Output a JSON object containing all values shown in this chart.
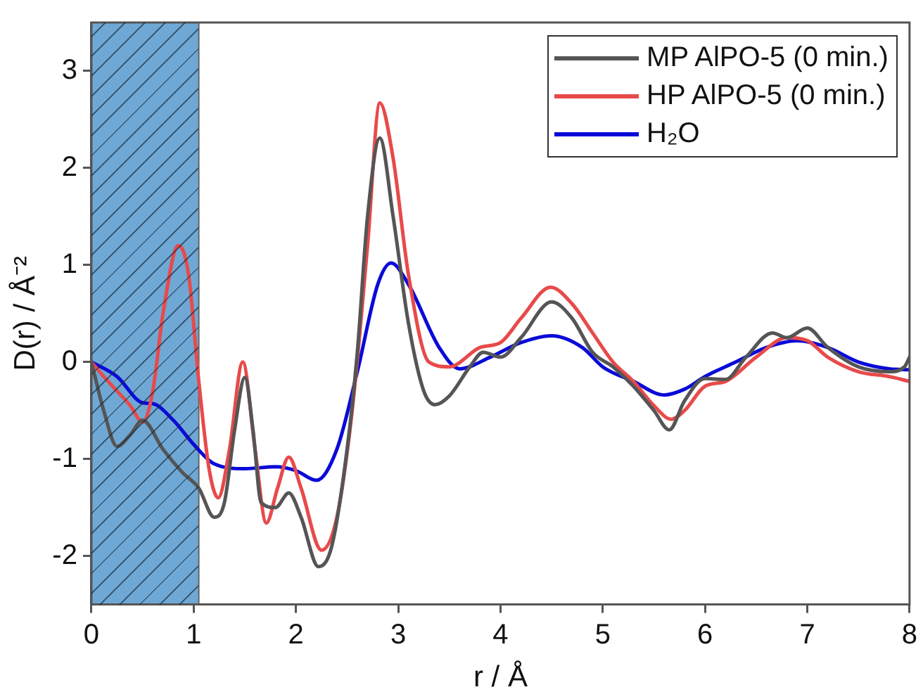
{
  "chart_data": {
    "type": "line",
    "xlabel": "r / Å",
    "ylabel": "D(r) / Å⁻²",
    "xlim": [
      0,
      8
    ],
    "xticks": [
      0,
      1,
      2,
      3,
      4,
      5,
      6,
      7,
      8
    ],
    "ylim": [
      -2.5,
      3.5
    ],
    "yticks": [
      -2,
      -1,
      0,
      1,
      2,
      3
    ],
    "grid": false,
    "legend": "top right",
    "marker": "none",
    "line_style": "solid",
    "bands": [
      {
        "axis": "x",
        "from": 0,
        "to": 1.05,
        "color": "#6fa8d4"
      }
    ],
    "series": [
      {
        "name": "MP AlPO-5 (0 min.)",
        "color": "#555555",
        "x": [
          0,
          0.12,
          0.25,
          0.38,
          0.5,
          0.7,
          0.9,
          1.05,
          1.2,
          1.3,
          1.4,
          1.5,
          1.58,
          1.66,
          1.8,
          1.93,
          2.05,
          2.22,
          2.35,
          2.5,
          2.6,
          2.7,
          2.82,
          2.95,
          3.1,
          3.25,
          3.36,
          3.5,
          3.7,
          3.83,
          4.0,
          4.2,
          4.5,
          4.7,
          4.9,
          5.1,
          5.3,
          5.5,
          5.65,
          5.8,
          6.0,
          6.2,
          6.4,
          6.66,
          6.8,
          7.0,
          7.2,
          7.5,
          7.8,
          7.95,
          8.0
        ],
        "values": [
          0,
          -0.5,
          -0.87,
          -0.75,
          -0.6,
          -0.9,
          -1.15,
          -1.3,
          -1.6,
          -1.45,
          -0.7,
          -0.16,
          -0.7,
          -1.45,
          -1.5,
          -1.35,
          -1.6,
          -2.11,
          -1.9,
          -0.9,
          0.1,
          1.5,
          2.31,
          1.5,
          0.4,
          -0.3,
          -0.44,
          -0.35,
          -0.05,
          0.1,
          0.05,
          0.25,
          0.62,
          0.45,
          0.1,
          -0.05,
          -0.25,
          -0.5,
          -0.7,
          -0.4,
          -0.17,
          -0.18,
          0.05,
          0.3,
          0.25,
          0.35,
          0.15,
          -0.05,
          -0.1,
          -0.05,
          0.05
        ]
      },
      {
        "name": "HP AlPO-5 (0 min.)",
        "color": "#e84a4a",
        "x": [
          0,
          0.12,
          0.25,
          0.38,
          0.5,
          0.6,
          0.7,
          0.85,
          0.95,
          1.05,
          1.15,
          1.24,
          1.35,
          1.48,
          1.6,
          1.71,
          1.82,
          1.93,
          2.05,
          2.25,
          2.4,
          2.55,
          2.7,
          2.82,
          2.95,
          3.1,
          3.3,
          3.5,
          3.8,
          4.0,
          4.2,
          4.49,
          4.7,
          4.9,
          5.1,
          5.3,
          5.5,
          5.67,
          5.8,
          6.0,
          6.2,
          6.5,
          6.8,
          7.0,
          7.2,
          7.5,
          7.8,
          8.0
        ],
        "values": [
          0,
          -0.15,
          -0.3,
          -0.45,
          -0.62,
          -0.3,
          0.5,
          1.2,
          0.9,
          -0.2,
          -1.1,
          -1.4,
          -0.9,
          0.0,
          -0.9,
          -1.66,
          -1.3,
          -0.98,
          -1.3,
          -1.94,
          -1.6,
          -0.5,
          1.2,
          2.67,
          2.1,
          0.9,
          0.0,
          -0.05,
          0.15,
          0.2,
          0.45,
          0.77,
          0.6,
          0.3,
          0.0,
          -0.2,
          -0.45,
          -0.59,
          -0.5,
          -0.25,
          -0.2,
          0.05,
          0.25,
          0.22,
          0.05,
          -0.1,
          -0.15,
          -0.2
        ]
      },
      {
        "name": "H₂O",
        "color": "#0a0ad8",
        "x": [
          0,
          0.25,
          0.5,
          0.6,
          0.8,
          1.0,
          1.2,
          1.5,
          1.8,
          2.0,
          2.2,
          2.4,
          2.6,
          2.8,
          2.93,
          3.1,
          3.4,
          3.6,
          3.9,
          4.2,
          4.5,
          4.8,
          5.0,
          5.3,
          5.6,
          5.8,
          6.0,
          6.3,
          6.6,
          6.9,
          7.2,
          7.5,
          7.8,
          8.0
        ],
        "values": [
          0,
          -0.15,
          -0.42,
          -0.43,
          -0.6,
          -0.85,
          -1.05,
          -1.1,
          -1.08,
          -1.12,
          -1.22,
          -0.9,
          -0.1,
          0.8,
          1.02,
          0.8,
          0.15,
          -0.07,
          0.05,
          0.2,
          0.27,
          0.15,
          -0.05,
          -0.2,
          -0.34,
          -0.28,
          -0.15,
          0.0,
          0.15,
          0.22,
          0.15,
          0.0,
          -0.07,
          -0.08
        ]
      }
    ]
  }
}
